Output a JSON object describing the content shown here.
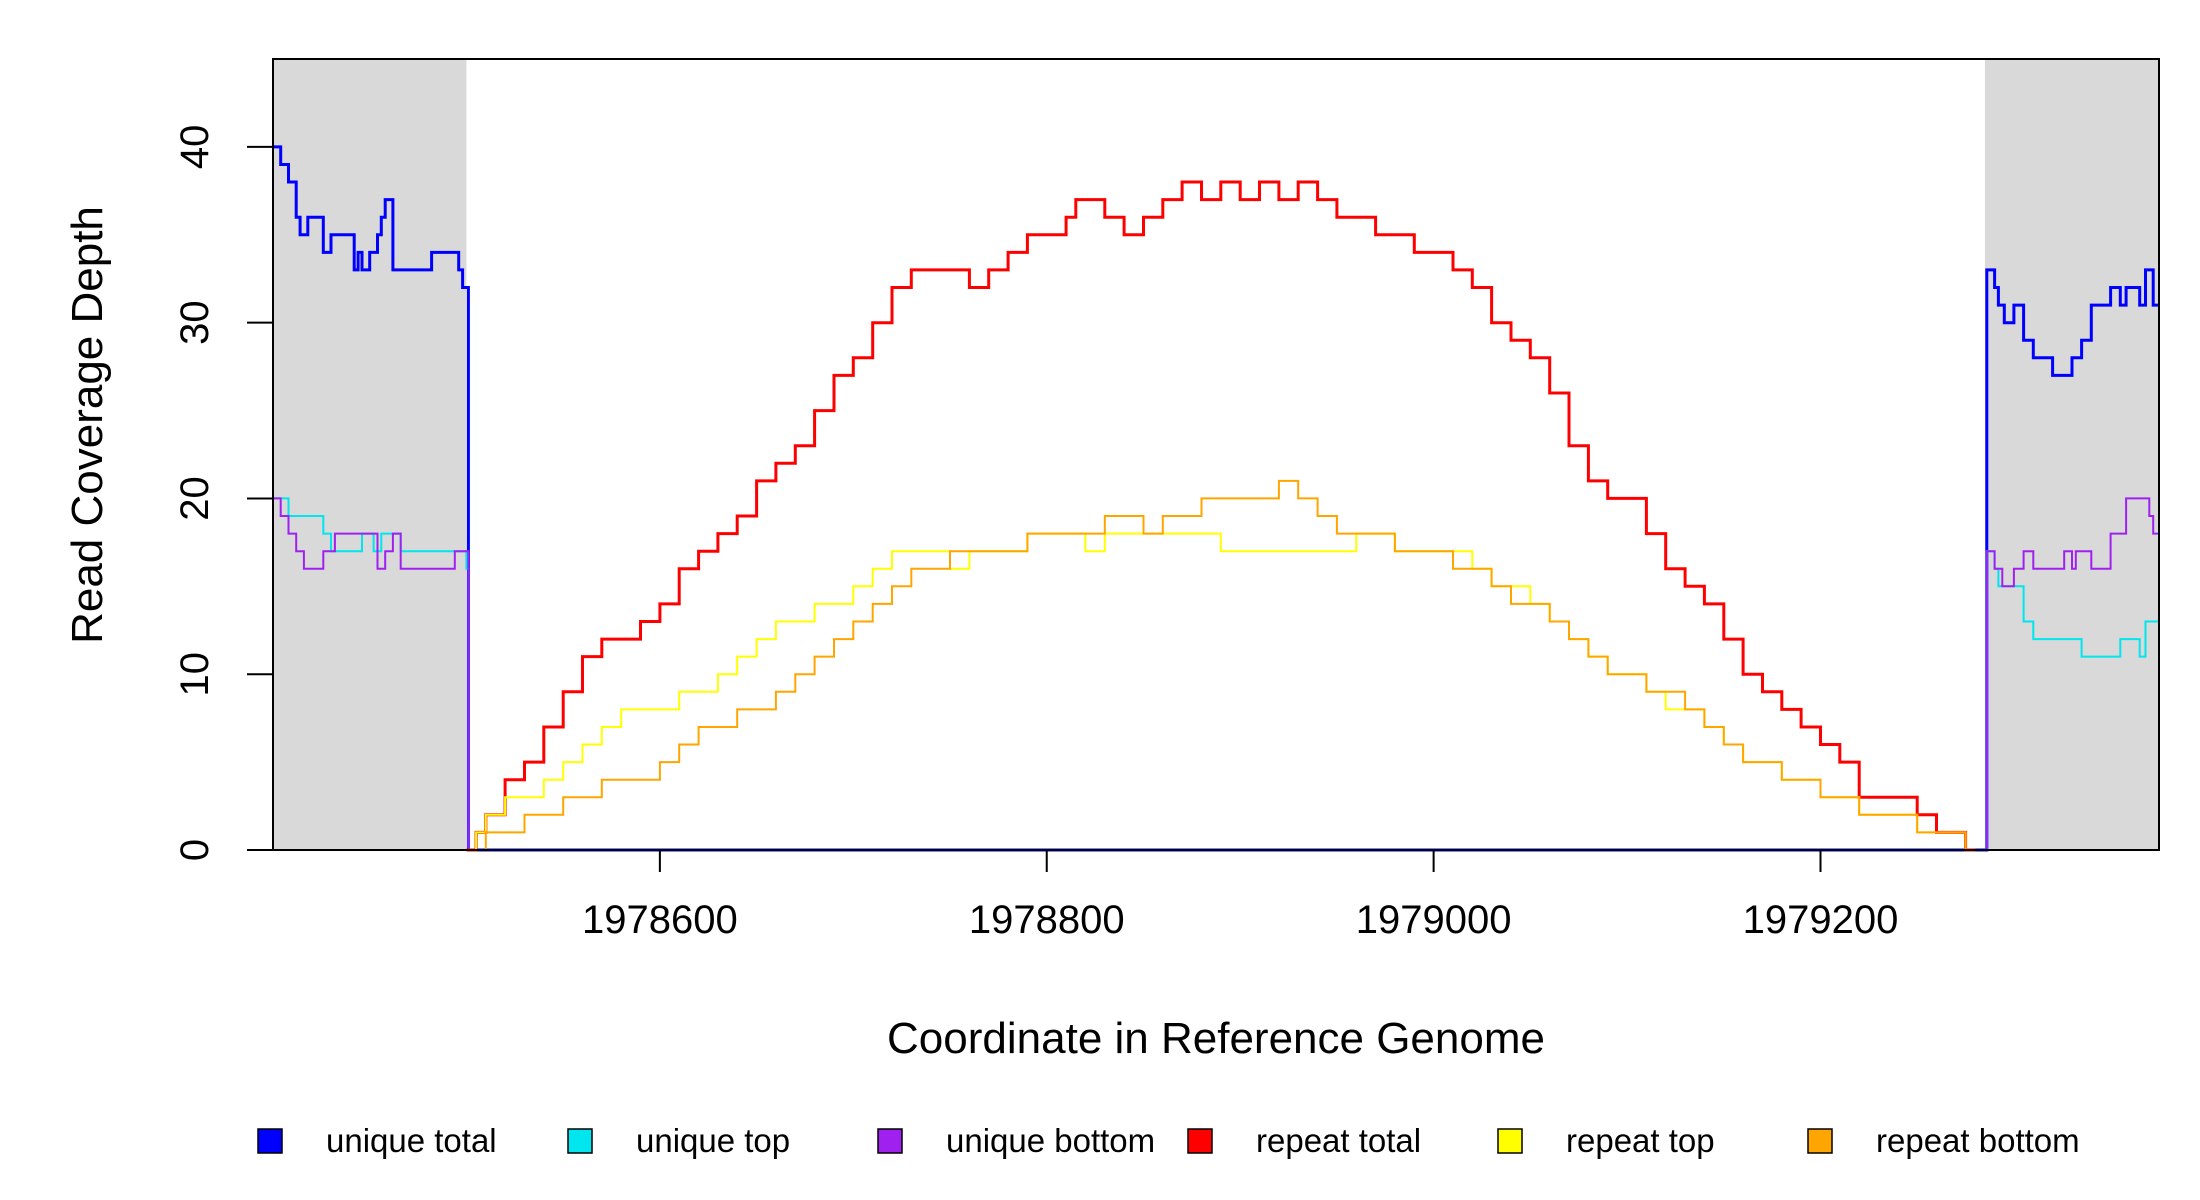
{
  "chart_data": {
    "type": "line",
    "title": "",
    "xlabel": "Coordinate in Reference Genome",
    "ylabel": "Read Coverage Depth",
    "xlim": [
      1978400,
      1979375
    ],
    "ylim": [
      0,
      45
    ],
    "x_ticks": [
      1978600,
      1978800,
      1979000,
      1979200
    ],
    "y_ticks": [
      0,
      10,
      20,
      30,
      40
    ],
    "x_tick_labels": [
      "1978600",
      "1978800",
      "1979000",
      "1979200"
    ],
    "y_tick_labels": [
      "0",
      "10",
      "20",
      "30",
      "40"
    ],
    "grid": false,
    "legend_position": "bottom",
    "shaded_regions": [
      {
        "x_start": 1978400,
        "x_end": 1978500,
        "color": "#d9d9d9"
      },
      {
        "x_start": 1979285,
        "x_end": 1979375,
        "color": "#d9d9d9"
      }
    ],
    "legend": [
      {
        "label": "unique total",
        "color": "#0000ff"
      },
      {
        "label": "unique top",
        "color": "#00e5ee"
      },
      {
        "label": "unique bottom",
        "color": "#a020f0"
      },
      {
        "label": "repeat total",
        "color": "#ff0000"
      },
      {
        "label": "repeat top",
        "color": "#ffff00"
      },
      {
        "label": "repeat bottom",
        "color": "#ffa500"
      }
    ],
    "series": [
      {
        "name": "unique total",
        "color": "#0000ff",
        "stroke_width": 3,
        "x": [
          1978400,
          1978404,
          1978408,
          1978412,
          1978414,
          1978418,
          1978426,
          1978430,
          1978432,
          1978442,
          1978444,
          1978446,
          1978450,
          1978454,
          1978456,
          1978458,
          1978462,
          1978466,
          1978482,
          1978494,
          1978496,
          1978498,
          1978500,
          1978501,
          1979285,
          1979286,
          1979290,
          1979292,
          1979295,
          1979300,
          1979305,
          1979310,
          1979318,
          1979320,
          1979325,
          1979330,
          1979335,
          1979340,
          1979345,
          1979350,
          1979355,
          1979358,
          1979362,
          1979365,
          1979368,
          1979372,
          1979375
        ],
        "y": [
          40,
          39,
          38,
          36,
          35,
          36,
          34,
          35,
          35,
          33,
          34,
          33,
          34,
          35,
          36,
          37,
          33,
          33,
          34,
          34,
          33,
          32,
          32,
          0,
          0,
          33,
          32,
          31,
          30,
          31,
          29,
          28,
          28,
          27,
          27,
          28,
          29,
          31,
          31,
          32,
          31,
          32,
          32,
          31,
          33,
          31,
          31
        ]
      },
      {
        "name": "unique top",
        "color": "#00e5ee",
        "stroke_width": 2,
        "x": [
          1978400,
          1978408,
          1978426,
          1978430,
          1978440,
          1978446,
          1978452,
          1978456,
          1978466,
          1978480,
          1978494,
          1978500,
          1978501,
          1979285,
          1979286,
          1979290,
          1979292,
          1979300,
          1979305,
          1979310,
          1979320,
          1979335,
          1979345,
          1979350,
          1979355,
          1979360,
          1979365,
          1979368,
          1979375
        ],
        "y": [
          20,
          19,
          18,
          17,
          17,
          18,
          17,
          18,
          17,
          17,
          17,
          16,
          0,
          0,
          17,
          16,
          15,
          15,
          13,
          12,
          12,
          11,
          11,
          11,
          12,
          12,
          11,
          13,
          13
        ]
      },
      {
        "name": "unique bottom",
        "color": "#a020f0",
        "stroke_width": 2,
        "x": [
          1978400,
          1978404,
          1978408,
          1978412,
          1978416,
          1978426,
          1978432,
          1978438,
          1978454,
          1978458,
          1978462,
          1978466,
          1978482,
          1978494,
          1978500,
          1978501,
          1979285,
          1979286,
          1979290,
          1979294,
          1979300,
          1979305,
          1979310,
          1979320,
          1979326,
          1979330,
          1979332,
          1979340,
          1979350,
          1979358,
          1979365,
          1979370,
          1979372,
          1979375
        ],
        "y": [
          20,
          19,
          18,
          17,
          16,
          17,
          18,
          18,
          16,
          17,
          18,
          16,
          16,
          17,
          17,
          0,
          0,
          17,
          16,
          15,
          16,
          17,
          16,
          16,
          17,
          16,
          17,
          16,
          18,
          20,
          20,
          19,
          18,
          18
        ]
      },
      {
        "name": "repeat total",
        "color": "#ff0000",
        "stroke_width": 3,
        "x": [
          1978500,
          1978505,
          1978510,
          1978520,
          1978530,
          1978540,
          1978550,
          1978560,
          1978570,
          1978580,
          1978590,
          1978600,
          1978610,
          1978620,
          1978630,
          1978640,
          1978650,
          1978660,
          1978670,
          1978680,
          1978690,
          1978700,
          1978710,
          1978720,
          1978730,
          1978740,
          1978750,
          1978760,
          1978770,
          1978780,
          1978790,
          1978800,
          1978810,
          1978815,
          1978820,
          1978830,
          1978840,
          1978850,
          1978860,
          1978870,
          1978880,
          1978890,
          1978900,
          1978910,
          1978920,
          1978930,
          1978940,
          1978950,
          1978960,
          1978970,
          1978980,
          1978990,
          1979000,
          1979010,
          1979020,
          1979030,
          1979040,
          1979050,
          1979060,
          1979070,
          1979080,
          1979090,
          1979100,
          1979110,
          1979120,
          1979130,
          1979140,
          1979150,
          1979160,
          1979170,
          1979180,
          1979190,
          1979200,
          1979210,
          1979220,
          1979230,
          1979240,
          1979250,
          1979260,
          1979270,
          1979275,
          1979280
        ],
        "y": [
          0,
          1,
          2,
          4,
          5,
          7,
          9,
          11,
          12,
          12,
          13,
          14,
          16,
          17,
          18,
          19,
          21,
          22,
          23,
          25,
          27,
          28,
          30,
          32,
          33,
          33,
          33,
          32,
          33,
          34,
          35,
          35,
          36,
          37,
          37,
          36,
          35,
          36,
          37,
          38,
          37,
          38,
          37,
          38,
          37,
          38,
          37,
          36,
          36,
          35,
          35,
          34,
          34,
          33,
          32,
          30,
          29,
          28,
          26,
          23,
          21,
          20,
          20,
          18,
          16,
          15,
          14,
          12,
          10,
          9,
          8,
          7,
          6,
          5,
          3,
          3,
          3,
          2,
          1,
          1,
          0,
          0
        ]
      },
      {
        "name": "repeat top",
        "color": "#ffff00",
        "stroke_width": 2,
        "x": [
          1978500,
          1978505,
          1978510,
          1978520,
          1978530,
          1978540,
          1978550,
          1978560,
          1978570,
          1978580,
          1978590,
          1978600,
          1978610,
          1978620,
          1978630,
          1978640,
          1978650,
          1978660,
          1978670,
          1978680,
          1978690,
          1978700,
          1978710,
          1978720,
          1978730,
          1978740,
          1978750,
          1978760,
          1978770,
          1978780,
          1978790,
          1978800,
          1978810,
          1978820,
          1978830,
          1978840,
          1978850,
          1978860,
          1978870,
          1978880,
          1978890,
          1978900,
          1978910,
          1978920,
          1978930,
          1978940,
          1978950,
          1978960,
          1978970,
          1978980,
          1978990,
          1979000,
          1979010,
          1979020,
          1979030,
          1979040,
          1979050,
          1979060,
          1979070,
          1979080,
          1979090,
          1979100,
          1979110,
          1979120,
          1979130,
          1979140,
          1979150,
          1979160,
          1979170,
          1979180,
          1979190,
          1979200,
          1979210,
          1979220,
          1979230,
          1979240,
          1979250,
          1979260,
          1979270,
          1979275,
          1979280
        ],
        "y": [
          0,
          1,
          2,
          3,
          3,
          4,
          5,
          6,
          7,
          8,
          8,
          8,
          9,
          9,
          10,
          11,
          12,
          13,
          13,
          14,
          14,
          15,
          16,
          17,
          17,
          17,
          16,
          17,
          17,
          17,
          18,
          18,
          18,
          17,
          18,
          18,
          18,
          18,
          18,
          18,
          17,
          17,
          17,
          17,
          17,
          17,
          17,
          18,
          18,
          17,
          17,
          17,
          17,
          16,
          15,
          15,
          14,
          13,
          12,
          11,
          10,
          10,
          9,
          8,
          8,
          7,
          6,
          5,
          5,
          4,
          4,
          3,
          3,
          2,
          2,
          2,
          1,
          1,
          1,
          0,
          0
        ]
      },
      {
        "name": "repeat bottom",
        "color": "#ffa500",
        "stroke_width": 2,
        "x": [
          1978500,
          1978505,
          1978510,
          1978520,
          1978530,
          1978540,
          1978550,
          1978560,
          1978570,
          1978580,
          1978590,
          1978600,
          1978610,
          1978620,
          1978630,
          1978640,
          1978650,
          1978660,
          1978670,
          1978680,
          1978690,
          1978700,
          1978710,
          1978720,
          1978730,
          1978740,
          1978750,
          1978760,
          1978770,
          1978780,
          1978790,
          1978800,
          1978810,
          1978820,
          1978830,
          1978840,
          1978850,
          1978860,
          1978870,
          1978880,
          1978890,
          1978900,
          1978910,
          1978920,
          1978930,
          1978940,
          1978950,
          1978960,
          1978970,
          1978980,
          1978990,
          1979000,
          1979010,
          1979020,
          1979030,
          1979040,
          1979050,
          1979060,
          1979070,
          1979080,
          1979090,
          1979100,
          1979110,
          1979120,
          1979130,
          1979140,
          1979150,
          1979160,
          1979170,
          1979180,
          1979190,
          1979200,
          1979210,
          1979220,
          1979230,
          1979240,
          1979250,
          1979260,
          1979270,
          1979275,
          1979280
        ],
        "y": [
          0,
          0,
          1,
          1,
          2,
          2,
          3,
          3,
          4,
          4,
          4,
          5,
          6,
          7,
          7,
          8,
          8,
          9,
          10,
          11,
          12,
          13,
          14,
          15,
          16,
          16,
          17,
          17,
          17,
          17,
          18,
          18,
          18,
          18,
          19,
          19,
          18,
          19,
          19,
          20,
          20,
          20,
          20,
          21,
          20,
          19,
          18,
          18,
          18,
          17,
          17,
          17,
          16,
          16,
          15,
          14,
          14,
          13,
          12,
          11,
          10,
          10,
          9,
          9,
          8,
          7,
          6,
          5,
          5,
          4,
          4,
          3,
          3,
          2,
          2,
          2,
          1,
          1,
          1,
          0,
          0
        ]
      }
    ]
  }
}
